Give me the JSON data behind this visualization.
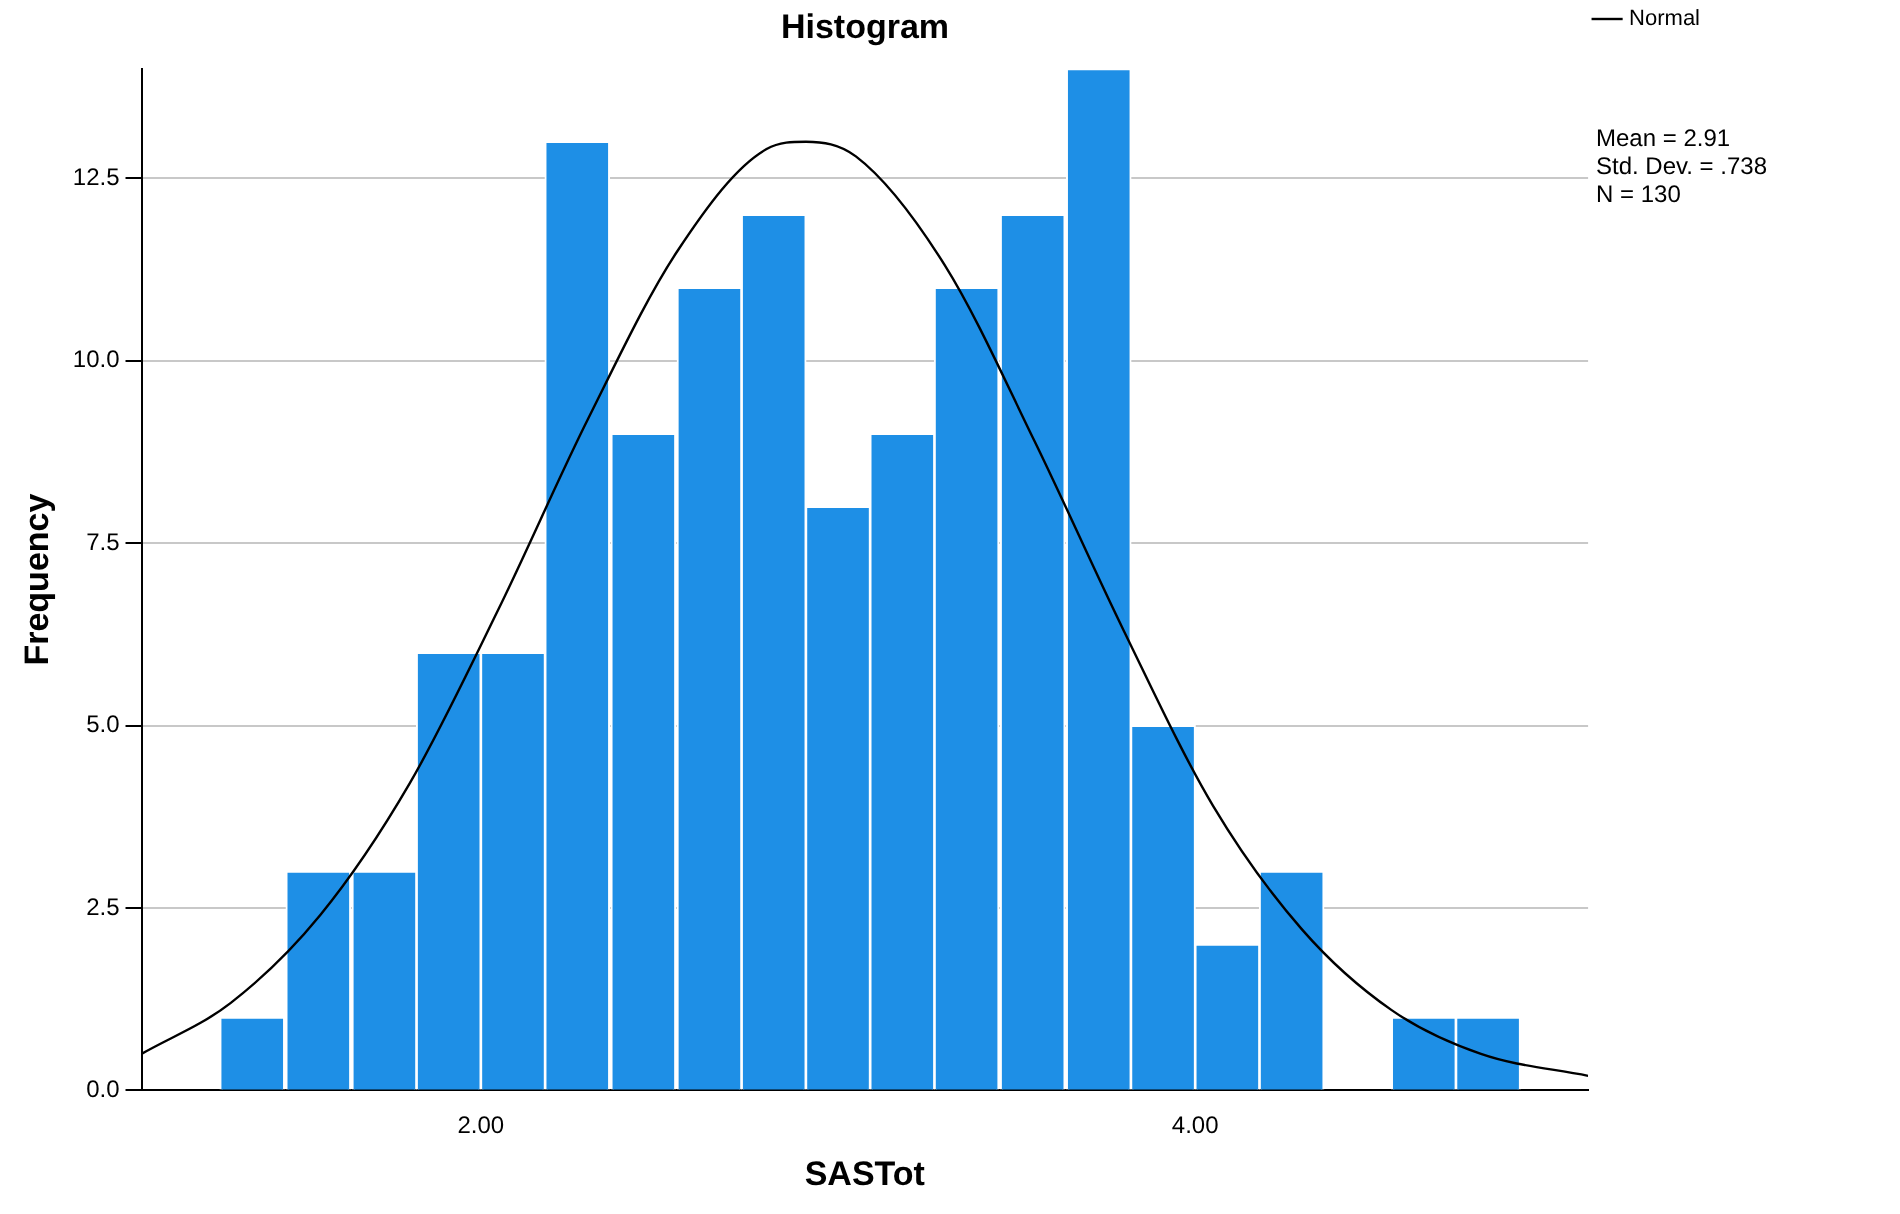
{
  "chart_data": {
    "type": "histogram",
    "title": "Histogram",
    "xlabel": "SASTot",
    "ylabel": "Frequency",
    "bins": [
      1.27,
      1.45,
      1.64,
      1.82,
      2.0,
      2.18,
      2.36,
      2.55,
      2.73,
      2.91,
      3.09,
      3.27,
      3.45,
      3.64,
      3.82,
      4.0,
      4.18,
      4.36,
      4.55,
      4.73,
      4.91
    ],
    "values": [
      1,
      3,
      3,
      6,
      6,
      13,
      9,
      11,
      12,
      8,
      9,
      11,
      12,
      14,
      5,
      2,
      3,
      0,
      1,
      1
    ],
    "color": "#1e8fe6",
    "series": [
      {
        "type": "line",
        "name": "Normal",
        "color": "#000000",
        "x": [
          1.05,
          1.3,
          1.55,
          1.8,
          2.05,
          2.3,
          2.55,
          2.8,
          2.91,
          3.05,
          3.3,
          3.55,
          3.8,
          4.05,
          4.3,
          4.55,
          4.8,
          5.1
        ],
        "values": [
          0.5,
          1.2,
          2.4,
          4.2,
          6.6,
          9.2,
          11.5,
          12.9,
          13,
          12.8,
          11.3,
          8.9,
          6.3,
          3.9,
          2.2,
          1.1,
          0.5,
          0.2
        ]
      }
    ],
    "xlim": [
      1.05,
      5.1
    ],
    "xticks": [
      {
        "value": 2,
        "label": "2.00"
      },
      {
        "value": 4,
        "label": "4.00"
      }
    ],
    "ylim": [
      0,
      14
    ],
    "yticks": [
      {
        "value": 0,
        "label": "0.0"
      },
      {
        "value": 2.5,
        "label": "2.5"
      },
      {
        "value": 5,
        "label": "5.0"
      },
      {
        "value": 7.5,
        "label": "7.5"
      },
      {
        "value": 10,
        "label": "10.0"
      },
      {
        "value": 12.5,
        "label": "12.5"
      }
    ],
    "grid": "y",
    "legend": "top right",
    "marker": "none",
    "line_style": "solid",
    "annotations": [
      "Mean = 2.91",
      "Std. Dev. = .738",
      "N = 130"
    ]
  }
}
